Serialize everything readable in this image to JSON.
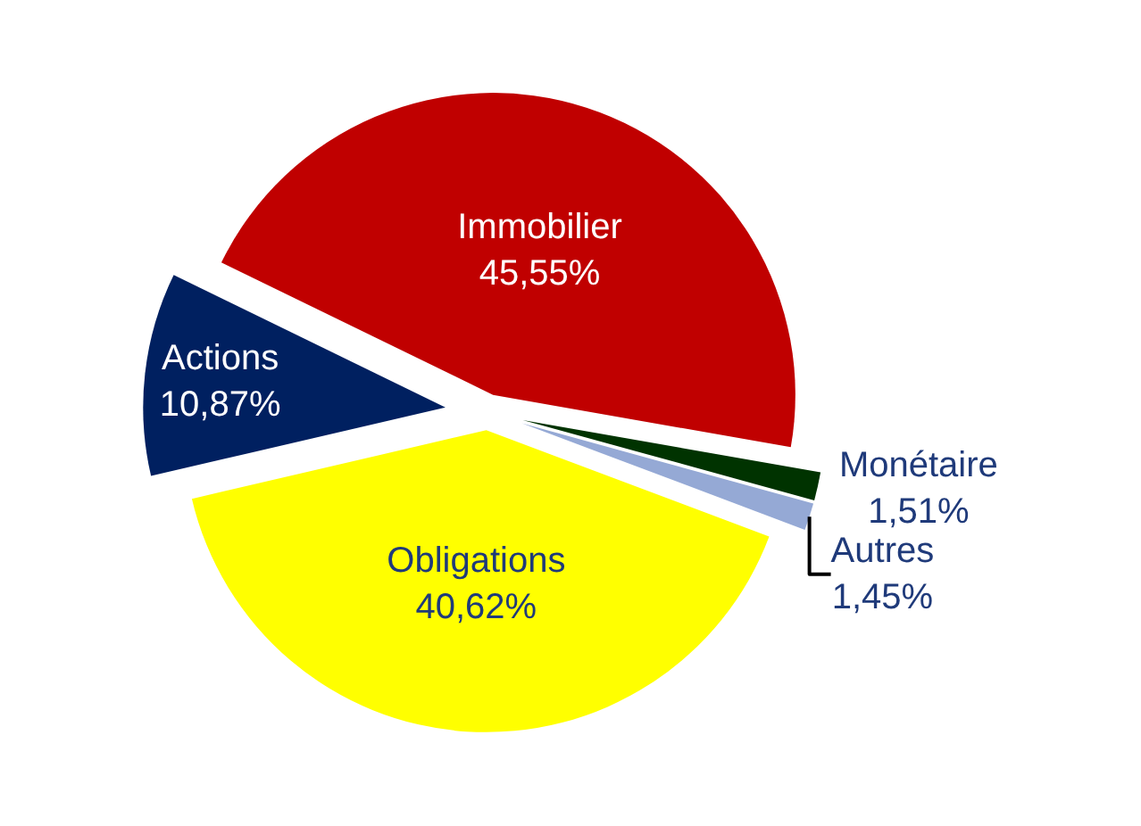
{
  "chart_data": {
    "type": "pie",
    "categories": [
      "Immobilier",
      "Monétaire",
      "Autres",
      "Obligations",
      "Actions"
    ],
    "values": [
      45.55,
      1.51,
      1.45,
      40.62,
      10.87
    ],
    "value_labels": [
      "45,55%",
      "1,51%",
      "1,45%",
      "40,62%",
      "10,87%"
    ],
    "colors": [
      "#c00000",
      "#003300",
      "#95a9d5",
      "#ffff00",
      "#002060"
    ],
    "legend": false
  }
}
